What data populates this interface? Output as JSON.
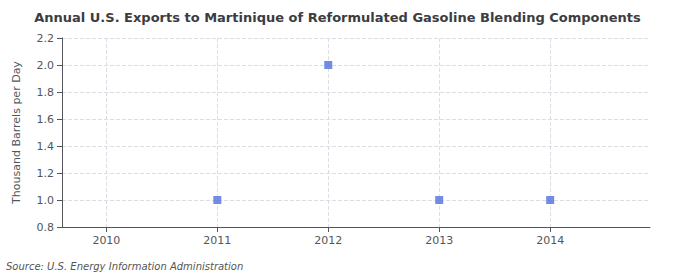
{
  "chart_data": {
    "type": "scatter",
    "title": "Annual U.S. Exports to Martinique of Reformulated Gasoline Blending Components",
    "ylabel": "Thousand Barrels per Day",
    "annotations": [
      "Source: U.S. Energy Information Administration"
    ],
    "x": [
      2010,
      2011,
      2012,
      2013,
      2014
    ],
    "values": [
      null,
      1.0,
      2.0,
      1.0,
      1.0
    ],
    "marker": "square",
    "xlim": [
      2009.6,
      2014.9
    ],
    "xticks": [
      2010,
      2011,
      2012,
      2013,
      2014
    ],
    "ylim": [
      0.8,
      2.2
    ],
    "yticks": [
      0.8,
      {
        "value": 1.0,
        "label": "1.0"
      },
      1.2,
      1.4,
      1.6,
      1.8,
      {
        "value": 2.0,
        "label": "2.0"
      },
      2.2
    ],
    "grid": true
  }
}
